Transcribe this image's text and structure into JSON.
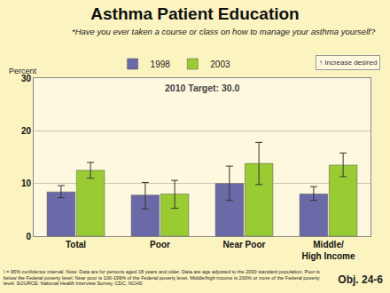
{
  "chart_data": {
    "type": "bar",
    "title": "Asthma Patient Education",
    "subtitle": "*Have you ever taken a course or class on how to manage your asthma yourself?",
    "y_label": "Percent",
    "categories": [
      "Total",
      "Poor",
      "Near Poor",
      "Middle/High Income"
    ],
    "series": [
      {
        "name": "1998",
        "color": "#6a6aa8",
        "values": [
          8.4,
          7.8,
          10.0,
          8.0
        ],
        "ci_low": [
          7.3,
          5.2,
          6.8,
          6.8
        ],
        "ci_high": [
          9.6,
          10.2,
          13.3,
          9.4
        ]
      },
      {
        "name": "2003",
        "color": "#99cc33",
        "values": [
          12.5,
          8.0,
          13.8,
          13.5
        ],
        "ci_low": [
          11.0,
          5.3,
          9.8,
          11.3
        ],
        "ci_high": [
          14.0,
          10.6,
          17.8,
          15.8
        ]
      }
    ],
    "ylim": [
      0,
      30
    ],
    "yticks": [
      0,
      10,
      20,
      30
    ],
    "grid": true,
    "legend": "top",
    "target_label": "2010 Target: 30.0",
    "direction_label": "↑ Increase desired",
    "note": "I = 95% confidence interval. Note: Data are for persons aged 18 years and older. Data are age adjusted to the 2000 standard population. Poor is below the Federal poverty level. Near poor is 100-199% of the Federal poverty level. Middle/high income is 200% or more of the Federal poverty level. SOURCE: National Health Interview Survey, CDC, NCHS",
    "objective": "Obj. 24-6"
  }
}
